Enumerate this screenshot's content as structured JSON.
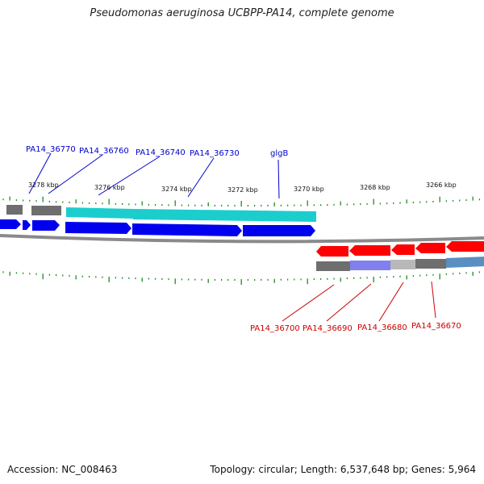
{
  "title": "Pseudomonas aeruginosa UCBPP-PA14, complete genome",
  "accession_text": "Accession: NC_008463",
  "summary_text": "Topology: circular; Length: 6,537,648 bp; Genes: 5,964",
  "colors": {
    "forward_cds": "#0000ee",
    "reverse_cds": "#ff0000",
    "forward_label": "#0000cc",
    "reverse_label": "#cc0000",
    "gene_bar_gray": "#6e6e6e",
    "gene_bar_cyan": "#1ccdcd",
    "gene_bar_purple": "#8080ee",
    "gene_bar_light": "#b8b8b8",
    "gene_bar_steel": "#5a8ec0",
    "backbone": "#8a8a8a",
    "ticks": "#228b22"
  },
  "ticks": {
    "labels": [
      "3278 kbp",
      "3276 kbp",
      "3274 kbp",
      "3272 kbp",
      "3270 kbp",
      "3268 kbp",
      "3266 kbp"
    ]
  },
  "forward_labels": [
    "PA14_36770",
    "PA14_36760",
    "PA14_36740",
    "PA14_36730",
    "glgB"
  ],
  "reverse_labels": [
    "PA14_36700",
    "PA14_36690",
    "PA14_36680",
    "PA14_36670"
  ]
}
